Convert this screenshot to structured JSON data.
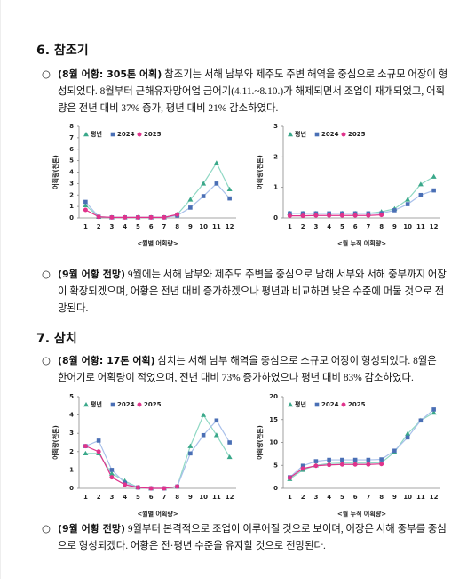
{
  "sections": [
    {
      "heading": "6. 참조기",
      "paragraphs": [
        {
          "lead": "(8월 어황: 305톤 어획)",
          "text": " 참조기는 서해 남부와 제주도 주변 해역을 중심으로 소규모 어장이 형성되었다. 8월부터 근해유자망어업 금어기(4.11.~8.10.)가 해제되면서 조업이 재개되었고, 어획량은 전년 대비 37% 증가, 평년 대비 21% 감소하였다."
        },
        {
          "lead": "(9월 어황 전망)",
          "text": " 9월에는 서해 남부와 제주도 주변을 중심으로 남해 서부와 서해 중부까지 어장이 확장되겠으며, 어황은 전년 대비 증가하겠으나 평년과 비교하면 낮은 수준에 머물 것으로 전망된다."
        }
      ]
    },
    {
      "heading": "7. 삼치",
      "paragraphs": [
        {
          "lead": "(8월 어황: 17톤 어획)",
          "text": " 삼치는 서해 남부 해역을 중심으로 소규모 어장이 형성되었다. 8월은 한어기로 어획량이 적었으며, 전년 대비 73% 증가하였으나 평년 대비 83% 감소하였다."
        },
        {
          "lead": "(9월 어황 전망)",
          "text": " 9월부터 본격적으로 조업이 이루어질 것으로 보이며, 어장은 서해 중부를 중심으로 형성되겠다. 어황은 전·평년 수준을 유지할 것으로 전망된다."
        }
      ]
    }
  ],
  "chart_data": [
    {
      "type": "line",
      "xlabel": "<월별 어획량>",
      "ylabel": "어획량(천톤)",
      "categories": [
        "1",
        "2",
        "3",
        "4",
        "5",
        "6",
        "7",
        "8",
        "9",
        "10",
        "11",
        "12"
      ],
      "ylim": [
        0,
        8
      ],
      "yticks": [
        0,
        1,
        2,
        3,
        4,
        5,
        6,
        7,
        8
      ],
      "series": [
        {
          "name": "평년",
          "color": "#3aa88a",
          "line": "#8fd8c4",
          "marker": "triangle",
          "values": [
            1.1,
            0.1,
            0.05,
            0.05,
            0.05,
            0.05,
            0.05,
            0.3,
            1.6,
            3.0,
            4.8,
            2.5
          ]
        },
        {
          "name": "2024",
          "color": "#4a6fb5",
          "line": "#a9c0ea",
          "marker": "square",
          "values": [
            1.4,
            0.1,
            0.05,
            0.05,
            0.05,
            0.05,
            0.05,
            0.2,
            0.9,
            1.9,
            3.0,
            1.7
          ]
        },
        {
          "name": "2025",
          "color": "#e0338c",
          "line": "#e0338c",
          "marker": "circle",
          "values": [
            0.7,
            0.1,
            0.05,
            0.05,
            0.05,
            0.05,
            0.05,
            0.3,
            null,
            null,
            null,
            null
          ]
        }
      ]
    },
    {
      "type": "line",
      "xlabel": "<월 누적 어획량>",
      "ylabel": "어획량(천톤)",
      "categories": [
        "1",
        "2",
        "3",
        "4",
        "5",
        "6",
        "7",
        "8",
        "9",
        "10",
        "11",
        "12"
      ],
      "ylim": [
        0,
        3
      ],
      "yticks": [
        0,
        1,
        2,
        3
      ],
      "series": [
        {
          "name": "평년",
          "color": "#3aa88a",
          "line": "#8fd8c4",
          "marker": "triangle",
          "values": [
            0.15,
            0.15,
            0.15,
            0.15,
            0.15,
            0.15,
            0.15,
            0.2,
            0.3,
            0.6,
            1.1,
            1.35
          ]
        },
        {
          "name": "2024",
          "color": "#4a6fb5",
          "line": "#a9c0ea",
          "marker": "square",
          "values": [
            0.15,
            0.15,
            0.15,
            0.15,
            0.15,
            0.15,
            0.15,
            0.15,
            0.25,
            0.45,
            0.75,
            0.9
          ]
        },
        {
          "name": "2025",
          "color": "#e0338c",
          "line": "#e0338c",
          "marker": "circle",
          "values": [
            0.07,
            0.07,
            0.08,
            0.08,
            0.08,
            0.08,
            0.08,
            0.1,
            null,
            null,
            null,
            null
          ]
        }
      ]
    },
    {
      "type": "line",
      "xlabel": "<월별 어획량>",
      "ylabel": "어획량(천톤)",
      "categories": [
        "1",
        "2",
        "3",
        "4",
        "5",
        "6",
        "7",
        "8",
        "9",
        "10",
        "11",
        "12"
      ],
      "ylim": [
        0,
        5
      ],
      "yticks": [
        0,
        1,
        2,
        3,
        4,
        5
      ],
      "series": [
        {
          "name": "평년",
          "color": "#3aa88a",
          "line": "#8fd8c4",
          "marker": "triangle",
          "values": [
            1.9,
            1.9,
            0.8,
            0.4,
            0.05,
            0,
            0,
            0.1,
            2.3,
            4.0,
            2.9,
            1.7
          ]
        },
        {
          "name": "2024",
          "color": "#4a6fb5",
          "line": "#a9c0ea",
          "marker": "square",
          "values": [
            2.3,
            2.6,
            1.0,
            0.3,
            0.05,
            0,
            0,
            0.1,
            1.9,
            2.9,
            3.7,
            2.5
          ]
        },
        {
          "name": "2025",
          "color": "#e0338c",
          "line": "#e0338c",
          "marker": "circle",
          "values": [
            2.3,
            2.0,
            0.6,
            0.2,
            0.05,
            0,
            0,
            0.1,
            null,
            null,
            null,
            null
          ]
        }
      ]
    },
    {
      "type": "line",
      "xlabel": "<월 누적 어획량>",
      "ylabel": "어획량(천톤)",
      "categories": [
        "1",
        "2",
        "3",
        "4",
        "5",
        "6",
        "7",
        "8",
        "9",
        "10",
        "11",
        "12"
      ],
      "ylim": [
        0,
        20
      ],
      "yticks": [
        0,
        5,
        10,
        15,
        20
      ],
      "series": [
        {
          "name": "평년",
          "color": "#3aa88a",
          "line": "#8fd8c4",
          "marker": "triangle",
          "values": [
            2.0,
            4.0,
            5.0,
            5.4,
            5.5,
            5.5,
            5.5,
            5.6,
            7.9,
            11.9,
            14.8,
            16.5
          ]
        },
        {
          "name": "2024",
          "color": "#4a6fb5",
          "line": "#a9c0ea",
          "marker": "square",
          "values": [
            2.4,
            4.9,
            5.9,
            6.2,
            6.2,
            6.2,
            6.2,
            6.3,
            8.2,
            11.1,
            14.8,
            17.2
          ]
        },
        {
          "name": "2025",
          "color": "#e0338c",
          "line": "#e0338c",
          "marker": "circle",
          "values": [
            2.3,
            4.3,
            4.9,
            5.1,
            5.2,
            5.2,
            5.2,
            5.3,
            null,
            null,
            null,
            null
          ]
        }
      ]
    }
  ]
}
